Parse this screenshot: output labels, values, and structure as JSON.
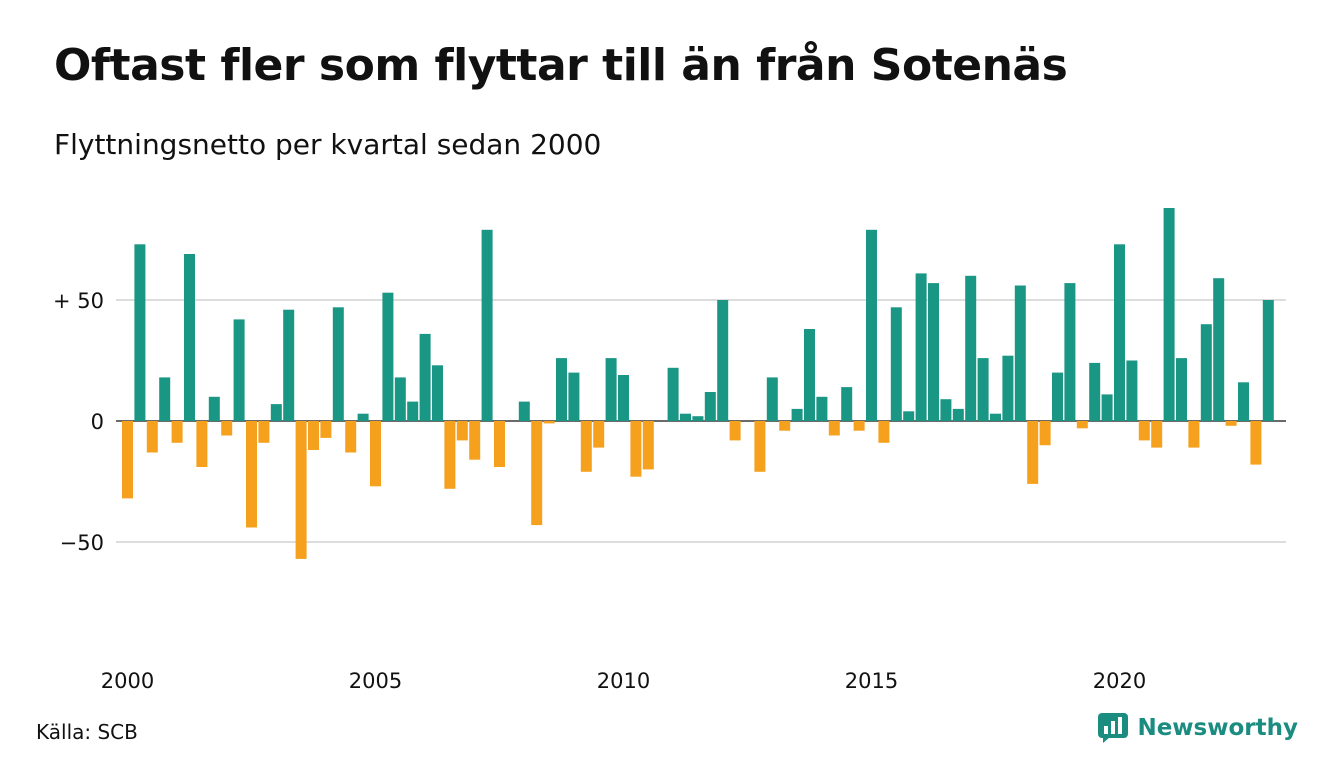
{
  "header": {
    "title": "Oftast fler som flyttar till än från Sotenäs",
    "subtitle": "Flyttningsnetto per kvartal sedan 2000"
  },
  "footer": {
    "source": "Källa: SCB",
    "brand": "Newsworthy"
  },
  "colors": {
    "positive": "#1a9685",
    "negative": "#f5a11e",
    "gridline": "#dddddd",
    "brand": "#1b8c80"
  },
  "icons": {
    "brand_logo": "newsworthy-logo-icon"
  },
  "chart_data": {
    "type": "bar",
    "title": "Oftast fler som flyttar till än från Sotenäs",
    "subtitle": "Flyttningsnetto per kvartal sedan 2000",
    "xlabel": "",
    "ylabel": "",
    "start_quarter": "2000-Q1",
    "ylim": [
      -80,
      90
    ],
    "y_ticks": [
      {
        "value": 50,
        "label": "+ 50"
      },
      {
        "value": 0,
        "label": "0"
      },
      {
        "value": -50,
        "label": "−50"
      }
    ],
    "x_ticks": [
      "2000",
      "2005",
      "2010",
      "2015",
      "2020"
    ],
    "grid": true,
    "legend": "none",
    "values": [
      -32,
      73,
      -13,
      18,
      -9,
      69,
      -19,
      10,
      -6,
      42,
      -44,
      -9,
      7,
      46,
      -57,
      -12,
      -7,
      47,
      -13,
      3,
      -27,
      53,
      18,
      8,
      36,
      23,
      -28,
      -8,
      -16,
      79,
      -19,
      0,
      8,
      -43,
      -1,
      26,
      20,
      -21,
      -11,
      26,
      19,
      -23,
      -20,
      0,
      22,
      3,
      2,
      12,
      50,
      -8,
      0,
      -21,
      18,
      -4,
      5,
      38,
      10,
      -6,
      14,
      -4,
      79,
      -9,
      47,
      4,
      61,
      57,
      9,
      5,
      60,
      26,
      3,
      27,
      56,
      -26,
      -10,
      20,
      57,
      -3,
      24,
      11,
      73,
      25,
      -8,
      -11,
      88,
      26,
      -11,
      40,
      59,
      -2,
      16,
      -18,
      50
    ]
  }
}
